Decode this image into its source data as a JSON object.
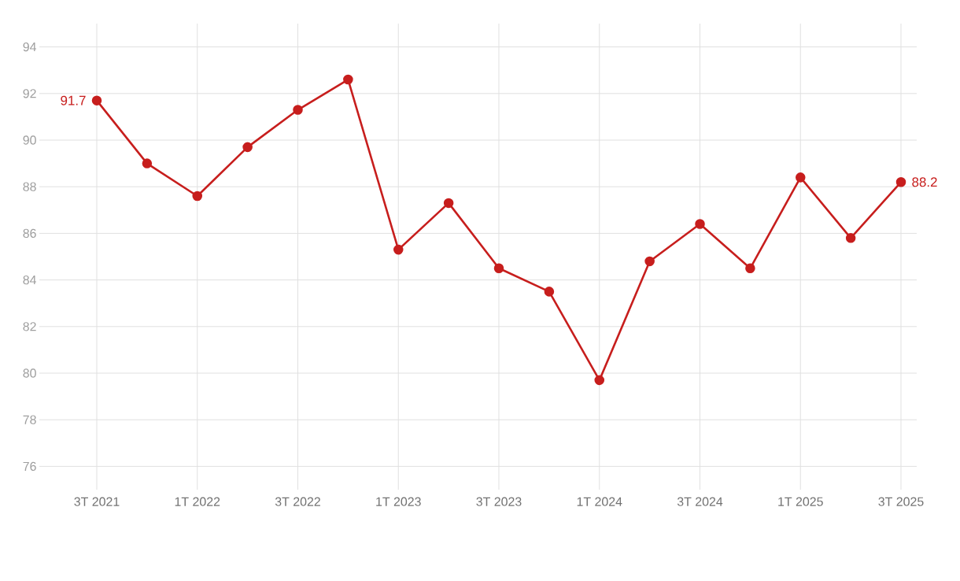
{
  "chart_data": {
    "type": "line",
    "categories": [
      "3T 2021",
      null,
      "1T 2022",
      null,
      "3T 2022",
      null,
      "1T 2023",
      null,
      "3T 2023",
      null,
      "1T 2024",
      null,
      "3T 2024",
      null,
      "1T 2025",
      null,
      "3T 2025"
    ],
    "values": [
      91.7,
      89.0,
      87.6,
      89.7,
      91.3,
      92.6,
      85.3,
      87.3,
      84.5,
      83.5,
      79.7,
      84.8,
      86.4,
      84.5,
      88.4,
      85.8,
      88.2
    ],
    "value_labels": [
      "91.7",
      null,
      null,
      null,
      null,
      null,
      null,
      null,
      null,
      null,
      null,
      null,
      null,
      null,
      null,
      null,
      "88.2"
    ],
    "color": "#c71e1d",
    "marker": "circle",
    "line_style": "solid",
    "ylim": [
      75,
      95
    ],
    "yticks": [
      76,
      78,
      80,
      82,
      84,
      86,
      88,
      90,
      92,
      94
    ],
    "grid": true
  }
}
